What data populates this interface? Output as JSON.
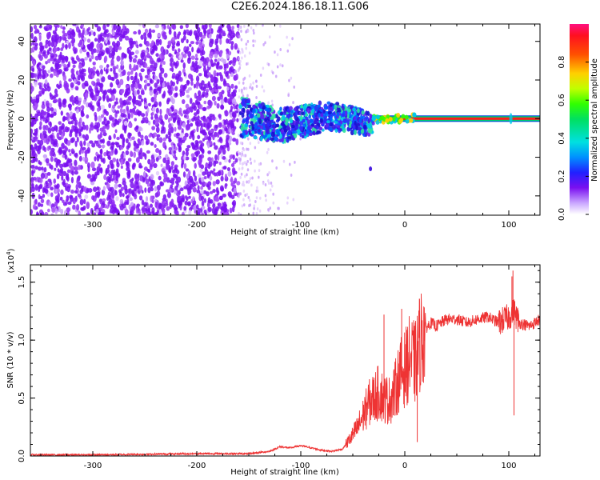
{
  "title": "C2E6.2024.186.18.11.G06",
  "colors": {
    "noise": "#8a1cf0",
    "signal_line": "#ff1a1a",
    "snr_line": "#ee3333",
    "axis": "#000000"
  },
  "chart_data": [
    {
      "type": "heatmap",
      "id": "spectrogram",
      "xlabel": "Height of straight line (km)",
      "ylabel": "Frequency (Hz)",
      "xlim": [
        -360,
        130
      ],
      "ylim": [
        -50,
        49
      ],
      "xticks": [
        -300,
        -200,
        -100,
        0,
        100
      ],
      "yticks": [
        -40,
        -20,
        0,
        20,
        40
      ],
      "colorbar": {
        "label": "Normalized spectral amplitude",
        "range": [
          0,
          1
        ],
        "ticks": [
          "0.0",
          "0.2",
          "0.4",
          "0.6",
          "0.8"
        ],
        "colormap": "rainbow"
      },
      "regions": [
        {
          "name": "dense noise",
          "x": [
            -360,
            -160
          ],
          "f": [
            -50,
            49
          ],
          "amplitude": 0.12
        },
        {
          "name": "sparse noise",
          "x": [
            -160,
            -90
          ],
          "f": [
            -50,
            49
          ],
          "amplitude": 0.05
        },
        {
          "name": "scattered signal",
          "x": [
            -158,
            -30
          ],
          "f": [
            -14,
            12
          ],
          "amplitude": 0.3
        },
        {
          "name": "steady carrier",
          "x": [
            -30,
            130
          ],
          "f": [
            -1,
            1
          ],
          "amplitude": 0.95
        }
      ]
    },
    {
      "type": "line",
      "id": "snr",
      "xlabel": "Height of straight line (km)",
      "ylabel": "SNR (10 * v/v)",
      "ylabel_scale": "(x10",
      "ylabel_scale_exp": "4",
      "ylabel_scale_close": ")",
      "xlim": [
        -360,
        130
      ],
      "ylim": [
        0,
        1.65
      ],
      "xticks": [
        -300,
        -200,
        -100,
        0,
        100
      ],
      "yticks": [
        "0.0",
        "0.5",
        "1.0",
        "1.5"
      ],
      "series": [
        {
          "x": [
            -360,
            -300,
            -200,
            -150,
            -130,
            -120,
            -110,
            -100,
            -90,
            -80,
            -70,
            -60,
            -50,
            -45,
            -40,
            -35,
            -30,
            -25,
            -20,
            -15,
            -10,
            -5,
            0,
            5,
            10,
            15,
            20,
            25,
            30,
            40,
            50,
            60,
            70,
            80,
            90,
            100,
            105,
            110,
            120,
            130
          ],
          "y": [
            0.01,
            0.01,
            0.02,
            0.02,
            0.04,
            0.08,
            0.07,
            0.09,
            0.07,
            0.05,
            0.04,
            0.06,
            0.18,
            0.25,
            0.35,
            0.45,
            0.5,
            0.55,
            0.5,
            0.48,
            0.55,
            0.7,
            0.75,
            0.85,
            0.8,
            1.0,
            1.1,
            1.15,
            1.12,
            1.18,
            1.18,
            1.15,
            1.18,
            1.2,
            1.15,
            1.2,
            1.25,
            1.15,
            1.12,
            1.18
          ]
        }
      ],
      "peaks": [
        {
          "x": 103,
          "y": 1.55
        },
        {
          "x": 104,
          "y": 1.6
        },
        {
          "x": 105,
          "y": 0.35
        },
        {
          "x": -3,
          "y": 1.27
        },
        {
          "x": -20,
          "y": 1.22
        },
        {
          "x": 12,
          "y": 0.12
        }
      ]
    }
  ]
}
